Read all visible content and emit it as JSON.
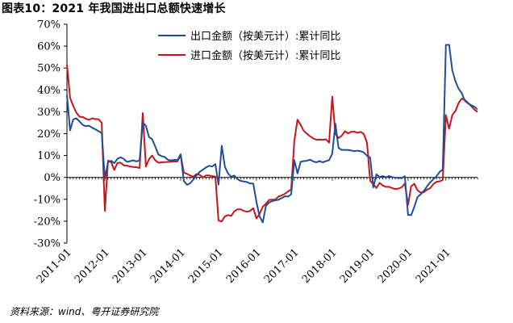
{
  "header": {
    "title": "图表10：2021 年我国进出口总额快速增长"
  },
  "footer": {
    "source": "资料来源：wind、粤开证券研究院"
  },
  "colors": {
    "export": "#1f4e96",
    "import": "#c4161c"
  },
  "chart_data": {
    "type": "line",
    "title": "",
    "xlabel": "",
    "ylabel": "",
    "ylim": [
      -30,
      70
    ],
    "y_ticks": [
      -30,
      -20,
      -10,
      0,
      10,
      20,
      30,
      40,
      50,
      60,
      70
    ],
    "y_tick_labels": [
      "-30%",
      "-20%",
      "-10%",
      "0%",
      "10%",
      "20%",
      "30%",
      "40%",
      "50%",
      "60%",
      "70%"
    ],
    "x_tick_labels": [
      "2011-01",
      "2012-01",
      "2013-01",
      "2014-01",
      "2015-01",
      "2016-01",
      "2017-01",
      "2018-01",
      "2019-01",
      "2020-01",
      "2021-01"
    ],
    "x_start": "2011-01",
    "x_end": "2021-11",
    "legend_position": "top-center",
    "grid": false,
    "series": [
      {
        "name": "出口金额（按美元计）:累计同比",
        "color": "#1f4e96",
        "points": [
          [
            "2011-01",
            37.7
          ],
          [
            "2011-02",
            21.5
          ],
          [
            "2011-03",
            26.5
          ],
          [
            "2011-04",
            27.0
          ],
          [
            "2011-05",
            25.5
          ],
          [
            "2011-06",
            24.0
          ],
          [
            "2011-07",
            23.4
          ],
          [
            "2011-08",
            23.6
          ],
          [
            "2011-09",
            22.7
          ],
          [
            "2011-10",
            22.0
          ],
          [
            "2011-11",
            21.1
          ],
          [
            "2011-12",
            20.3
          ],
          [
            "2012-01",
            -0.5
          ],
          [
            "2012-02",
            6.9
          ],
          [
            "2012-03",
            7.6
          ],
          [
            "2012-04",
            6.5
          ],
          [
            "2012-05",
            8.5
          ],
          [
            "2012-06",
            9.2
          ],
          [
            "2012-07",
            8.4
          ],
          [
            "2012-08",
            7.1
          ],
          [
            "2012-09",
            7.4
          ],
          [
            "2012-10",
            7.8
          ],
          [
            "2012-11",
            7.3
          ],
          [
            "2012-12",
            7.9
          ],
          [
            "2013-01",
            25.0
          ],
          [
            "2013-02",
            23.6
          ],
          [
            "2013-03",
            18.4
          ],
          [
            "2013-04",
            17.4
          ],
          [
            "2013-05",
            14.0
          ],
          [
            "2013-06",
            10.4
          ],
          [
            "2013-07",
            9.7
          ],
          [
            "2013-08",
            9.3
          ],
          [
            "2013-09",
            8.0
          ],
          [
            "2013-10",
            7.8
          ],
          [
            "2013-11",
            8.0
          ],
          [
            "2013-12",
            7.9
          ],
          [
            "2014-01",
            10.6
          ],
          [
            "2014-02",
            -1.6
          ],
          [
            "2014-03",
            -3.4
          ],
          [
            "2014-04",
            -2.7
          ],
          [
            "2014-05",
            -1.0
          ],
          [
            "2014-06",
            0.9
          ],
          [
            "2014-07",
            2.5
          ],
          [
            "2014-08",
            3.5
          ],
          [
            "2014-09",
            4.5
          ],
          [
            "2014-10",
            5.3
          ],
          [
            "2014-11",
            5.0
          ],
          [
            "2014-12",
            6.1
          ],
          [
            "2015-01",
            -3.3
          ],
          [
            "2015-02",
            14.5
          ],
          [
            "2015-03",
            4.9
          ],
          [
            "2015-04",
            1.8
          ],
          [
            "2015-05",
            0.3
          ],
          [
            "2015-06",
            0.9
          ],
          [
            "2015-07",
            -0.8
          ],
          [
            "2015-08",
            -1.6
          ],
          [
            "2015-09",
            -1.9
          ],
          [
            "2015-10",
            -2.1
          ],
          [
            "2015-11",
            -2.8
          ],
          [
            "2015-12",
            -2.8
          ],
          [
            "2016-01",
            -11.2
          ],
          [
            "2016-02",
            -17.8
          ],
          [
            "2016-03",
            -20.6
          ],
          [
            "2016-04",
            -13.0
          ],
          [
            "2016-05",
            -11.5
          ],
          [
            "2016-06",
            -10.8
          ],
          [
            "2016-07",
            -10.5
          ],
          [
            "2016-08",
            -10.2
          ],
          [
            "2016-09",
            -9.5
          ],
          [
            "2016-10",
            -8.6
          ],
          [
            "2016-11",
            -8.8
          ],
          [
            "2016-12",
            -7.7
          ],
          [
            "2017-01",
            7.9
          ],
          [
            "2017-02",
            1.8
          ],
          [
            "2017-03",
            7.1
          ],
          [
            "2017-04",
            7.5
          ],
          [
            "2017-05",
            7.6
          ],
          [
            "2017-06",
            8.1
          ],
          [
            "2017-07",
            7.3
          ],
          [
            "2017-08",
            6.9
          ],
          [
            "2017-09",
            7.5
          ],
          [
            "2017-10",
            6.9
          ],
          [
            "2017-11",
            7.4
          ],
          [
            "2017-12",
            7.9
          ],
          [
            "2018-01",
            10.8
          ],
          [
            "2018-02",
            24.5
          ],
          [
            "2018-03",
            13.5
          ],
          [
            "2018-04",
            12.6
          ],
          [
            "2018-05",
            12.6
          ],
          [
            "2018-06",
            12.5
          ],
          [
            "2018-07",
            12.3
          ],
          [
            "2018-08",
            12.0
          ],
          [
            "2018-09",
            12.2
          ],
          [
            "2018-10",
            12.0
          ],
          [
            "2018-11",
            11.4
          ],
          [
            "2018-12",
            9.9
          ],
          [
            "2019-01",
            9.1
          ],
          [
            "2019-02",
            -4.6
          ],
          [
            "2019-03",
            1.4
          ],
          [
            "2019-04",
            0.2
          ],
          [
            "2019-05",
            0.6
          ],
          [
            "2019-06",
            0.1
          ],
          [
            "2019-07",
            0.6
          ],
          [
            "2019-08",
            0.1
          ],
          [
            "2019-09",
            -0.1
          ],
          [
            "2019-10",
            -0.2
          ],
          [
            "2019-11",
            -0.3
          ],
          [
            "2019-12",
            0.5
          ],
          [
            "2020-01",
            -17.2
          ],
          [
            "2020-02",
            -17.2
          ],
          [
            "2020-03",
            -13.4
          ],
          [
            "2020-04",
            -9.0
          ],
          [
            "2020-05",
            -7.7
          ],
          [
            "2020-06",
            -6.2
          ],
          [
            "2020-07",
            -4.1
          ],
          [
            "2020-08",
            -2.3
          ],
          [
            "2020-09",
            -0.8
          ],
          [
            "2020-10",
            0.5
          ],
          [
            "2020-11",
            2.5
          ],
          [
            "2020-12",
            3.6
          ],
          [
            "2021-01",
            60.6
          ],
          [
            "2021-02",
            60.6
          ],
          [
            "2021-03",
            49.0
          ],
          [
            "2021-04",
            44.0
          ],
          [
            "2021-05",
            40.5
          ],
          [
            "2021-06",
            38.6
          ],
          [
            "2021-07",
            35.0
          ],
          [
            "2021-08",
            33.8
          ],
          [
            "2021-09",
            33.0
          ],
          [
            "2021-10",
            32.3
          ],
          [
            "2021-11",
            31.1
          ]
        ]
      },
      {
        "name": "进口金额（按美元计）:累计同比",
        "color": "#c4161c",
        "points": [
          [
            "2011-01",
            51.6
          ],
          [
            "2011-02",
            36.4
          ],
          [
            "2011-03",
            32.6
          ],
          [
            "2011-04",
            29.6
          ],
          [
            "2011-05",
            27.7
          ],
          [
            "2011-06",
            27.6
          ],
          [
            "2011-07",
            26.8
          ],
          [
            "2011-08",
            26.3
          ],
          [
            "2011-09",
            27.0
          ],
          [
            "2011-10",
            26.6
          ],
          [
            "2011-11",
            26.6
          ],
          [
            "2011-12",
            24.9
          ],
          [
            "2012-01",
            -15.3
          ],
          [
            "2012-02",
            7.7
          ],
          [
            "2012-03",
            7.0
          ],
          [
            "2012-04",
            3.4
          ],
          [
            "2012-05",
            6.6
          ],
          [
            "2012-06",
            6.7
          ],
          [
            "2012-07",
            5.5
          ],
          [
            "2012-08",
            5.4
          ],
          [
            "2012-09",
            5.0
          ],
          [
            "2012-10",
            4.8
          ],
          [
            "2012-11",
            4.7
          ],
          [
            "2012-12",
            4.3
          ],
          [
            "2013-01",
            29.4
          ],
          [
            "2013-02",
            5.0
          ],
          [
            "2013-03",
            8.4
          ],
          [
            "2013-04",
            10.0
          ],
          [
            "2013-05",
            7.7
          ],
          [
            "2013-06",
            6.7
          ],
          [
            "2013-07",
            6.9
          ],
          [
            "2013-08",
            7.0
          ],
          [
            "2013-09",
            7.1
          ],
          [
            "2013-10",
            7.2
          ],
          [
            "2013-11",
            7.3
          ],
          [
            "2013-12",
            7.3
          ],
          [
            "2014-01",
            10.2
          ],
          [
            "2014-02",
            2.3
          ],
          [
            "2014-03",
            1.6
          ],
          [
            "2014-04",
            0.9
          ],
          [
            "2014-05",
            0.3
          ],
          [
            "2014-06",
            1.5
          ],
          [
            "2014-07",
            1.2
          ],
          [
            "2014-08",
            0.0
          ],
          [
            "2014-09",
            0.9
          ],
          [
            "2014-10",
            0.9
          ],
          [
            "2014-11",
            0.6
          ],
          [
            "2014-12",
            0.4
          ],
          [
            "2015-01",
            -19.7
          ],
          [
            "2015-02",
            -20.1
          ],
          [
            "2015-03",
            -17.8
          ],
          [
            "2015-04",
            -17.2
          ],
          [
            "2015-05",
            -17.6
          ],
          [
            "2015-06",
            -15.5
          ],
          [
            "2015-07",
            -14.6
          ],
          [
            "2015-08",
            -14.6
          ],
          [
            "2015-09",
            -15.3
          ],
          [
            "2015-10",
            -15.7
          ],
          [
            "2015-11",
            -15.3
          ],
          [
            "2015-12",
            -14.1
          ],
          [
            "2016-01",
            -18.8
          ],
          [
            "2016-02",
            -16.7
          ],
          [
            "2016-03",
            -13.4
          ],
          [
            "2016-04",
            -12.0
          ],
          [
            "2016-05",
            -10.3
          ],
          [
            "2016-06",
            -10.2
          ],
          [
            "2016-07",
            -10.1
          ],
          [
            "2016-08",
            -8.7
          ],
          [
            "2016-09",
            -8.2
          ],
          [
            "2016-10",
            -7.5
          ],
          [
            "2016-11",
            -6.4
          ],
          [
            "2016-12",
            -5.5
          ],
          [
            "2017-01",
            16.7
          ],
          [
            "2017-02",
            26.4
          ],
          [
            "2017-03",
            24.0
          ],
          [
            "2017-04",
            21.2
          ],
          [
            "2017-05",
            19.9
          ],
          [
            "2017-06",
            18.8
          ],
          [
            "2017-07",
            17.8
          ],
          [
            "2017-08",
            17.2
          ],
          [
            "2017-09",
            17.3
          ],
          [
            "2017-10",
            17.2
          ],
          [
            "2017-11",
            17.4
          ],
          [
            "2017-12",
            15.9
          ],
          [
            "2018-01",
            36.9
          ],
          [
            "2018-02",
            19.8
          ],
          [
            "2018-03",
            18.0
          ],
          [
            "2018-04",
            19.0
          ],
          [
            "2018-05",
            21.1
          ],
          [
            "2018-06",
            20.1
          ],
          [
            "2018-07",
            20.9
          ],
          [
            "2018-08",
            20.9
          ],
          [
            "2018-09",
            20.4
          ],
          [
            "2018-10",
            20.8
          ],
          [
            "2018-11",
            19.9
          ],
          [
            "2018-12",
            15.8
          ],
          [
            "2019-01",
            -1.5
          ],
          [
            "2019-02",
            -3.1
          ],
          [
            "2019-03",
            -4.8
          ],
          [
            "2019-04",
            -2.5
          ],
          [
            "2019-05",
            -3.7
          ],
          [
            "2019-06",
            -4.3
          ],
          [
            "2019-07",
            -4.3
          ],
          [
            "2019-08",
            -4.9
          ],
          [
            "2019-09",
            -5.3
          ],
          [
            "2019-10",
            -5.1
          ],
          [
            "2019-11",
            -4.5
          ],
          [
            "2019-12",
            -2.8
          ],
          [
            "2020-01",
            -12.5
          ],
          [
            "2020-02",
            -4.0
          ],
          [
            "2020-03",
            -2.9
          ],
          [
            "2020-04",
            -5.9
          ],
          [
            "2020-05",
            -6.9
          ],
          [
            "2020-06",
            -6.8
          ],
          [
            "2020-07",
            -5.6
          ],
          [
            "2020-08",
            -4.9
          ],
          [
            "2020-09",
            -3.1
          ],
          [
            "2020-10",
            -2.0
          ],
          [
            "2020-11",
            -1.8
          ],
          [
            "2020-12",
            -1.1
          ],
          [
            "2021-01",
            28.5
          ],
          [
            "2021-02",
            22.2
          ],
          [
            "2021-03",
            28.5
          ],
          [
            "2021-04",
            30.3
          ],
          [
            "2021-05",
            34.0
          ],
          [
            "2021-06",
            36.0
          ],
          [
            "2021-07",
            35.4
          ],
          [
            "2021-08",
            34.1
          ],
          [
            "2021-09",
            32.6
          ],
          [
            "2021-10",
            31.0
          ],
          [
            "2021-11",
            29.9
          ]
        ]
      }
    ]
  }
}
